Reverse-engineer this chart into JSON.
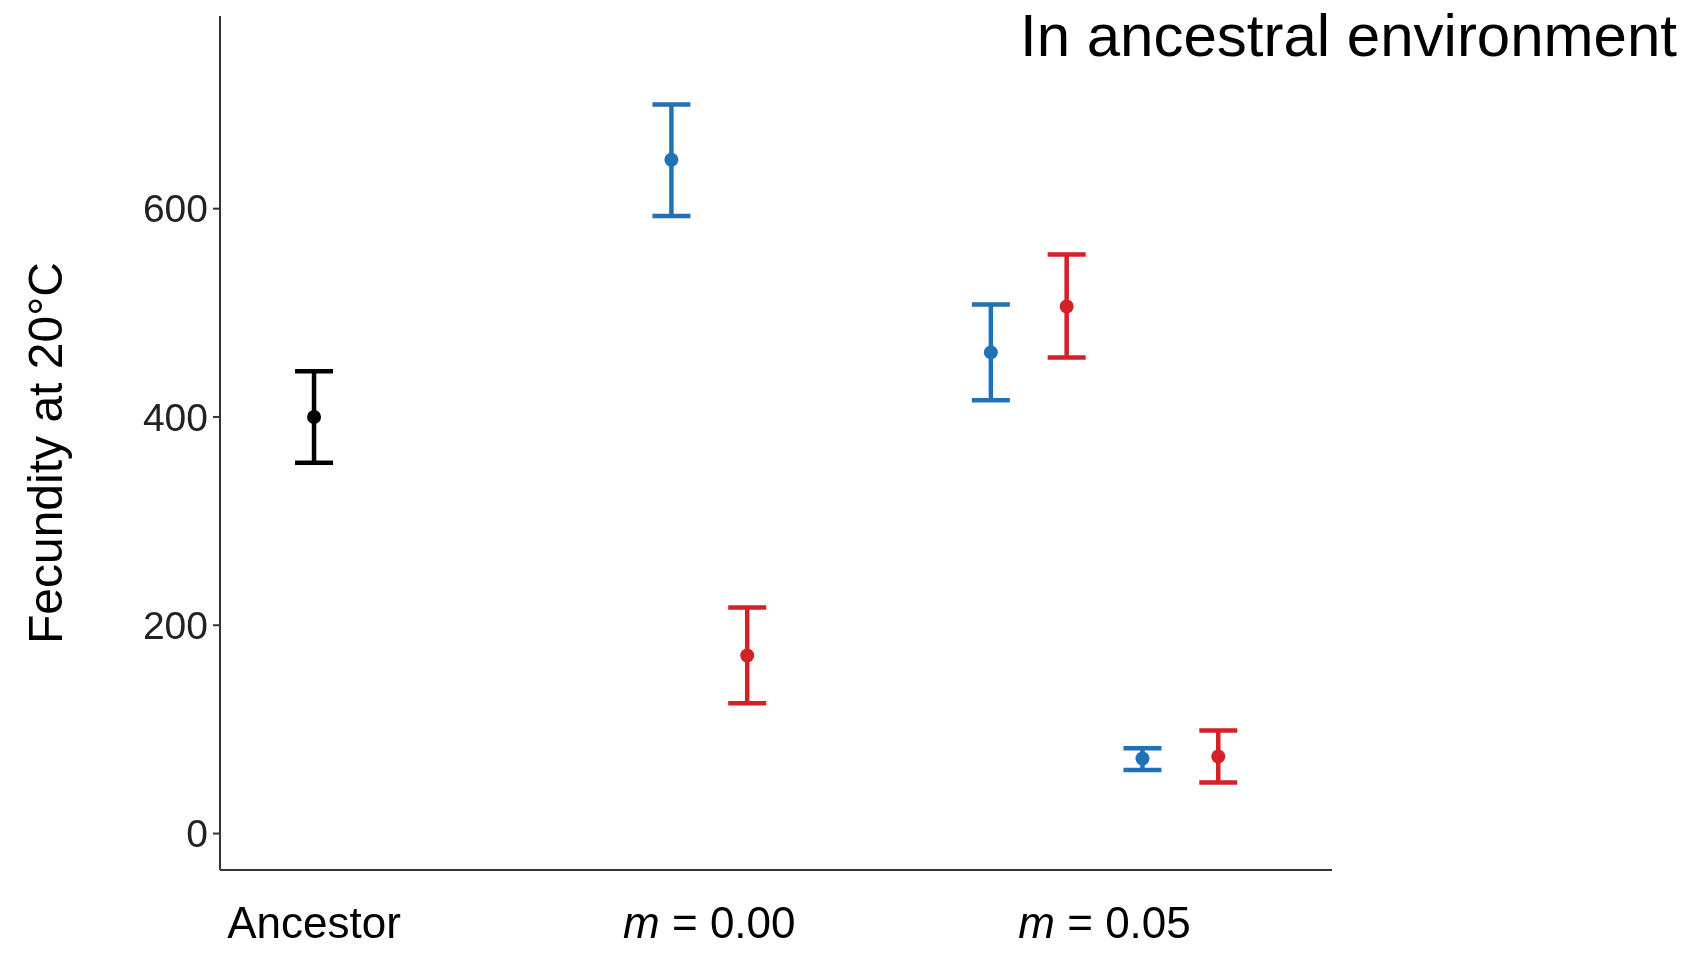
{
  "chart_data": {
    "type": "scatter",
    "title": "In ancestral environment",
    "ylabel": "Fecundity at 20°C",
    "categories": [
      "Ancestor",
      "m = 0.00",
      "m = 0.05"
    ],
    "ylim": [
      -35,
      785
    ],
    "yticks": [
      0,
      200,
      400,
      600
    ],
    "marker": "circle",
    "series": [
      {
        "color": "#000000",
        "values": [
          400,
          null,
          null
        ],
        "errors": [
          [
            356,
            444
          ],
          null,
          null
        ]
      },
      {
        "color": "#2171b5",
        "values": [
          null,
          647,
          462
        ],
        "errors": [
          null,
          [
            593,
            700
          ],
          [
            416,
            508
          ]
        ]
      },
      {
        "color": "#d42027",
        "values": [
          null,
          171,
          506
        ],
        "errors": [
          null,
          [
            125,
            217
          ],
          [
            457,
            556
          ]
        ]
      },
      {
        "color": "#2171b5",
        "values": [
          null,
          null,
          72
        ],
        "errors": [
          null,
          null,
          [
            61,
            82
          ]
        ]
      },
      {
        "color": "#d42027",
        "values": [
          null,
          null,
          74
        ],
        "errors": [
          null,
          null,
          [
            49,
            99
          ]
        ]
      }
    ]
  }
}
